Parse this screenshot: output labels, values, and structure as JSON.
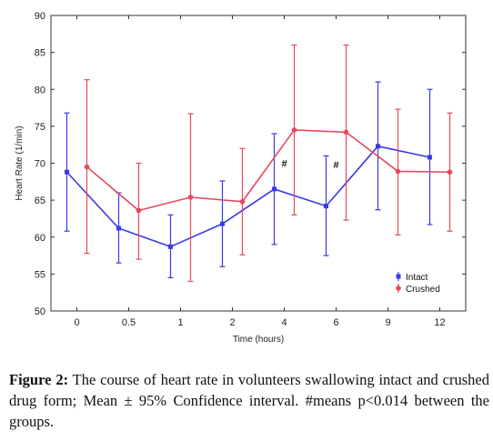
{
  "chart_data": {
    "type": "line",
    "title": "",
    "xlabel": "Time (hours)",
    "ylabel": "Heart Rate (1/min)",
    "ylim": [
      50,
      90
    ],
    "yticks": [
      "50",
      "55",
      "60",
      "65",
      "70",
      "75",
      "80",
      "85",
      "90"
    ],
    "categories": [
      "0",
      "0.5",
      "1",
      "2",
      "4",
      "6",
      "9",
      "12"
    ],
    "grid": false,
    "legend_position": "bottom-right",
    "series": [
      {
        "name": "Intact",
        "color": "#3a3ae6",
        "marker": "square",
        "mean": [
          68.8,
          61.2,
          58.7,
          61.8,
          66.5,
          64.2,
          72.3,
          70.8
        ],
        "ci_low": [
          60.8,
          56.5,
          54.5,
          56.0,
          59.0,
          57.5,
          63.7,
          61.7
        ],
        "ci_high": [
          76.8,
          66.0,
          63.0,
          67.6,
          74.0,
          71.0,
          81.0,
          80.0
        ]
      },
      {
        "name": "Crushed",
        "color": "#e8485a",
        "marker": "circle",
        "mean": [
          69.5,
          63.6,
          65.4,
          64.8,
          74.5,
          74.2,
          68.9,
          68.8
        ],
        "ci_low": [
          57.8,
          57.0,
          54.0,
          57.6,
          63.0,
          62.3,
          60.3,
          60.8
        ],
        "ci_high": [
          81.3,
          70.0,
          76.7,
          72.0,
          86.0,
          86.0,
          77.3,
          76.8
        ]
      }
    ],
    "annotations": [
      {
        "text": "#",
        "category": "4",
        "y": 70.0
      },
      {
        "text": "#",
        "category": "6",
        "y": 69.8
      }
    ]
  },
  "caption": {
    "label": "Figure 2:",
    "text": " The course of heart rate in volunteers swallowing intact and crushed drug form; Mean ± 95% Confidence interval. #means p<0.014 between the groups."
  }
}
